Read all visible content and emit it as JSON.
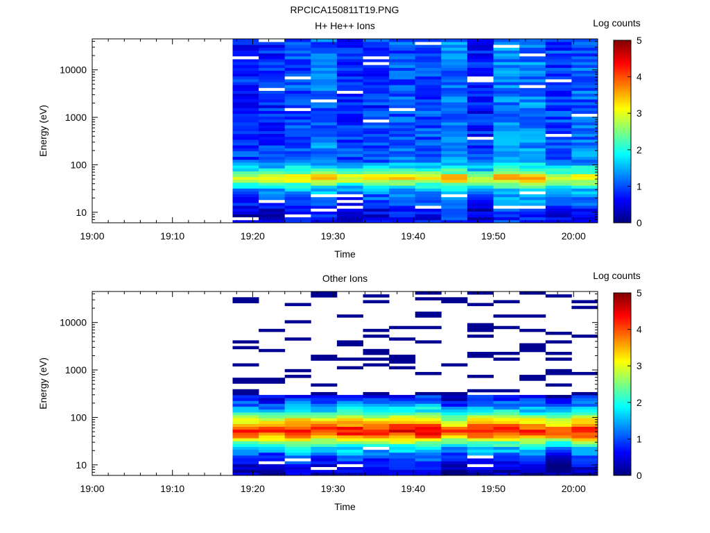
{
  "figure": {
    "title": "RPCICA150811T19.PNG"
  },
  "colors": {
    "colormap": [
      "#00007f",
      "#0000ff",
      "#007fff",
      "#00ffff",
      "#7fff7f",
      "#ffff00",
      "#ff7f00",
      "#ff0000",
      "#7f0000"
    ],
    "missing": "#ffffff",
    "axis": "#000000"
  },
  "chart_data": [
    {
      "type": "heatmap",
      "title": "H+ He++ Ions",
      "xlabel": "Time",
      "ylabel": "Energy (eV)",
      "x_ticks": [
        "19:00",
        "19:10",
        "19:20",
        "19:30",
        "19:40",
        "19:50",
        "20:00"
      ],
      "x_range_minutes": [
        0,
        63
      ],
      "y_scale": "log",
      "y_range": [
        6,
        45000
      ],
      "y_ticks": [
        "10",
        "100",
        "1000",
        "10000"
      ],
      "colorbar": {
        "label": "Log counts",
        "range": [
          0,
          5
        ],
        "ticks": [
          "0",
          "1",
          "2",
          "3",
          "4",
          "5"
        ]
      },
      "data_start_minutes": 17.5,
      "column_width_minutes": 3.25,
      "columns": 14,
      "energy_band_profile_log_counts": [
        {
          "energy_eV": 8,
          "value": 0.6
        },
        {
          "energy_eV": 11,
          "value": 0.7
        },
        {
          "energy_eV": 15,
          "value": 1.0
        },
        {
          "energy_eV": 22,
          "value": 1.2
        },
        {
          "energy_eV": 32,
          "value": 1.6
        },
        {
          "energy_eV": 45,
          "value": 2.8
        },
        {
          "energy_eV": 55,
          "value": 3.4
        },
        {
          "energy_eV": 70,
          "value": 2.2
        },
        {
          "energy_eV": 120,
          "value": 1.2
        },
        {
          "energy_eV": 1000,
          "value": 1.0
        },
        {
          "energy_eV": 30000,
          "value": 1.0
        }
      ]
    },
    {
      "type": "heatmap",
      "title": "Other Ions",
      "xlabel": "Time",
      "ylabel": "Energy (eV)",
      "x_ticks": [
        "19:00",
        "19:10",
        "19:20",
        "19:30",
        "19:40",
        "19:50",
        "20:00"
      ],
      "x_range_minutes": [
        0,
        63
      ],
      "y_scale": "log",
      "y_range": [
        6,
        45000
      ],
      "y_ticks": [
        "10",
        "100",
        "1000",
        "10000"
      ],
      "colorbar": {
        "label": "Log counts",
        "range": [
          0,
          5
        ],
        "ticks": [
          "0",
          "1",
          "2",
          "3",
          "4",
          "5"
        ]
      },
      "data_start_minutes": 17.5,
      "column_width_minutes": 3.25,
      "columns": 14,
      "energy_band_profile_log_counts": [
        {
          "energy_eV": 8,
          "value": 0.3
        },
        {
          "energy_eV": 11,
          "value": 0.6
        },
        {
          "energy_eV": 15,
          "value": 0.9
        },
        {
          "energy_eV": 22,
          "value": 1.5
        },
        {
          "energy_eV": 30,
          "value": 2.4
        },
        {
          "energy_eV": 40,
          "value": 3.6
        },
        {
          "energy_eV": 52,
          "value": 4.2
        },
        {
          "energy_eV": 70,
          "value": 3.6
        },
        {
          "energy_eV": 95,
          "value": 2.8
        },
        {
          "energy_eV": 130,
          "value": 1.8
        },
        {
          "energy_eV": 200,
          "value": 1.0
        },
        {
          "energy_eV": 300,
          "value": 0.4
        },
        {
          "energy_eV": 30000,
          "value": 0.1
        }
      ]
    }
  ]
}
